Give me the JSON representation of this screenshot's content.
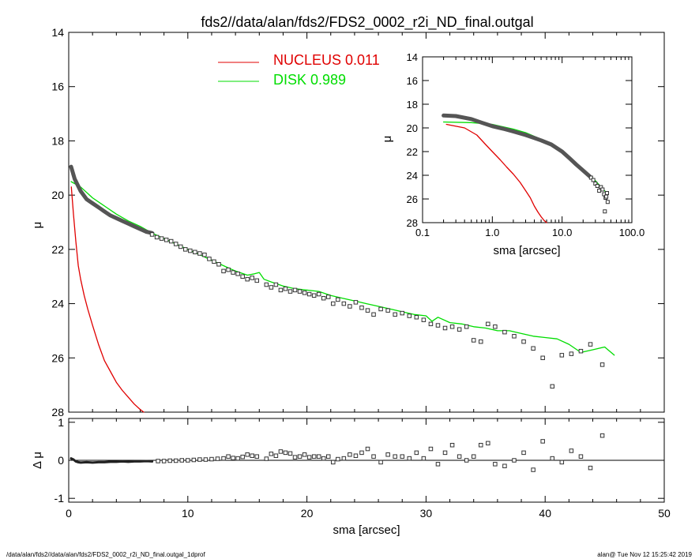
{
  "header": {
    "title": "fds2//data/alan/fds2/FDS2_0002_r2i_ND_final.outgal"
  },
  "footer": {
    "left": "/data/alan/fds2//data/alan/fds2/FDS2_0002_r2i_ND_final.outgal_1dprof",
    "right": "alan@  Tue Nov 12 15:25:42 2019"
  },
  "chart_data": [
    {
      "id": "main",
      "type": "scatter",
      "xlabel": "sma [arcsec]",
      "ylabel": "μ",
      "xlim": [
        0,
        50
      ],
      "ylim": [
        28,
        14
      ],
      "y_inverted": true,
      "xticks": [
        0,
        10,
        20,
        30,
        40,
        50
      ],
      "yticks": [
        14,
        16,
        18,
        20,
        22,
        24,
        26,
        28
      ],
      "legend": {
        "placement": "top-center",
        "entries": [
          {
            "label": "NUCLEUS  0.011",
            "color": "#e00000"
          },
          {
            "label": "DISK  0.989",
            "color": "#00dd00"
          }
        ]
      },
      "series": [
        {
          "name": "NUCLEUS",
          "color": "#e00000",
          "style": "line",
          "x": [
            0.22,
            0.4,
            0.6,
            0.8,
            1.0,
            1.3,
            1.6,
            2.0,
            2.5,
            3.0,
            3.5,
            4.0,
            4.5,
            5.0,
            5.5,
            6.0,
            6.3
          ],
          "y": [
            19.7,
            20.7,
            21.7,
            22.6,
            23.1,
            23.7,
            24.2,
            24.8,
            25.5,
            26.1,
            26.5,
            26.9,
            27.2,
            27.45,
            27.7,
            27.9,
            28.0
          ]
        },
        {
          "name": "DISK",
          "color": "#00dd00",
          "style": "line",
          "x": [
            0.2,
            1,
            2,
            3,
            4,
            5,
            6,
            7,
            8,
            9,
            10,
            11,
            12,
            13,
            14,
            15,
            15.6,
            16,
            16.4,
            17,
            18,
            19,
            20,
            21,
            22,
            23,
            24,
            25,
            26,
            27,
            28,
            29,
            30,
            30.5,
            31,
            32,
            33,
            34,
            35,
            36,
            37,
            38,
            39,
            40,
            41,
            42,
            43,
            44,
            45,
            45.8
          ],
          "y": [
            19.5,
            19.7,
            20.1,
            20.4,
            20.7,
            20.95,
            21.15,
            21.4,
            21.6,
            21.8,
            22.0,
            22.2,
            22.4,
            22.6,
            22.8,
            22.95,
            22.9,
            22.85,
            23.1,
            23.2,
            23.35,
            23.45,
            23.5,
            23.55,
            23.7,
            23.8,
            23.9,
            24.0,
            24.1,
            24.2,
            24.3,
            24.4,
            24.45,
            24.65,
            24.5,
            24.7,
            24.75,
            24.85,
            24.9,
            25.0,
            25.0,
            25.1,
            25.2,
            25.25,
            25.3,
            25.5,
            25.8,
            25.7,
            25.6,
            25.9
          ]
        },
        {
          "name": "inner-profile",
          "color": "#555555",
          "style": "thick-line",
          "x": [
            0.2,
            0.5,
            1.0,
            1.5,
            2,
            2.5,
            3,
            3.5,
            4,
            4.5,
            5,
            5.5,
            6,
            6.5,
            7
          ],
          "y": [
            18.95,
            19.4,
            19.85,
            20.15,
            20.3,
            20.45,
            20.6,
            20.75,
            20.85,
            20.95,
            21.05,
            21.15,
            21.25,
            21.35,
            21.4
          ]
        },
        {
          "name": "data",
          "color": "#333333",
          "style": "squares",
          "x": [
            7,
            7.4,
            7.8,
            8.2,
            8.6,
            9.0,
            9.4,
            9.8,
            10.2,
            10.6,
            11.0,
            11.4,
            11.8,
            12.2,
            12.6,
            13.0,
            13.4,
            13.8,
            14.2,
            14.6,
            15.0,
            15.4,
            15.8,
            16.6,
            17.0,
            17.4,
            17.8,
            18.2,
            18.6,
            19.0,
            19.4,
            19.8,
            20.2,
            20.6,
            21.0,
            21.4,
            21.8,
            22.2,
            22.6,
            23.1,
            23.6,
            24.1,
            24.6,
            25.1,
            25.6,
            26.2,
            26.8,
            27.4,
            28.0,
            28.6,
            29.2,
            29.8,
            30.4,
            31.0,
            31.6,
            32.2,
            32.8,
            33.4,
            34.0,
            34.6,
            35.2,
            35.8,
            36.6,
            37.4,
            38.2,
            39.0,
            39.8,
            40.6,
            41.4,
            42.2,
            43.0,
            43.8,
            44.8
          ],
          "y": [
            21.45,
            21.55,
            21.6,
            21.65,
            21.7,
            21.8,
            21.9,
            22.0,
            22.05,
            22.1,
            22.15,
            22.2,
            22.35,
            22.45,
            22.55,
            22.8,
            22.75,
            22.85,
            22.9,
            23.0,
            23.1,
            23.05,
            23.15,
            23.3,
            23.4,
            23.3,
            23.5,
            23.45,
            23.55,
            23.5,
            23.55,
            23.6,
            23.65,
            23.7,
            23.65,
            23.8,
            23.75,
            24.0,
            23.85,
            24.0,
            24.1,
            23.95,
            24.15,
            24.25,
            24.4,
            24.2,
            24.25,
            24.4,
            24.35,
            24.45,
            24.5,
            24.6,
            24.75,
            24.8,
            24.9,
            24.85,
            24.95,
            24.85,
            25.35,
            25.4,
            24.75,
            24.85,
            25.05,
            25.2,
            25.4,
            25.65,
            26.0,
            27.05,
            25.9,
            25.85,
            25.75,
            25.5,
            26.25
          ]
        }
      ]
    },
    {
      "id": "inset",
      "type": "scatter",
      "xscale": "log",
      "xlabel": "sma [arcsec]",
      "ylabel": "μ",
      "xlim": [
        0.1,
        100
      ],
      "ylim": [
        28,
        14
      ],
      "y_inverted": true,
      "xticks": [
        0.1,
        1.0,
        10.0,
        100.0
      ],
      "xticklabels": [
        "0.1",
        "1.0",
        "10.0",
        "100.0"
      ],
      "yticks": [
        14,
        16,
        18,
        20,
        22,
        24,
        26,
        28
      ],
      "series": [
        {
          "name": "NUCLEUS",
          "color": "#e00000",
          "style": "line",
          "x": [
            0.22,
            0.4,
            0.6,
            0.8,
            1.0,
            1.3,
            1.6,
            2.0,
            2.5,
            3.0,
            3.5,
            4.0,
            4.5,
            5.0,
            5.5,
            6.0
          ],
          "y": [
            19.7,
            20.0,
            20.6,
            21.4,
            22.0,
            22.7,
            23.3,
            23.9,
            24.6,
            25.3,
            25.9,
            26.6,
            27.1,
            27.5,
            27.8,
            28.0
          ]
        },
        {
          "name": "DISK",
          "color": "#00dd00",
          "style": "line",
          "x": [
            0.2,
            0.5,
            1.0,
            2,
            3,
            5,
            7,
            10,
            15,
            20,
            25,
            30,
            35,
            40,
            45
          ],
          "y": [
            19.5,
            19.55,
            19.7,
            20.1,
            20.4,
            20.95,
            21.4,
            22.0,
            22.95,
            23.5,
            24.0,
            24.45,
            24.9,
            25.25,
            25.6
          ]
        },
        {
          "name": "profile",
          "color": "#555555",
          "style": "thick-line",
          "x": [
            0.2,
            0.3,
            0.5,
            0.7,
            1.0,
            1.5,
            2,
            3,
            4,
            5,
            7,
            10,
            13,
            16,
            20,
            25
          ],
          "y": [
            18.95,
            19.0,
            19.25,
            19.55,
            19.85,
            20.1,
            20.3,
            20.6,
            20.85,
            21.05,
            21.4,
            22.0,
            22.6,
            23.1,
            23.6,
            24.1
          ]
        },
        {
          "name": "data",
          "color": "#333333",
          "style": "squares",
          "x": [
            26,
            28,
            30,
            32,
            34,
            36,
            38,
            40,
            41,
            42,
            43,
            44,
            45
          ],
          "y": [
            24.2,
            24.4,
            24.7,
            24.9,
            25.3,
            25.0,
            25.2,
            25.6,
            27.05,
            25.9,
            25.8,
            25.5,
            26.25
          ]
        }
      ]
    },
    {
      "id": "residual",
      "type": "scatter",
      "xlabel": "sma [arcsec]",
      "ylabel": "Δ μ",
      "xlim": [
        0,
        50
      ],
      "ylim": [
        -1.1,
        1.1
      ],
      "xticks": [
        0,
        10,
        20,
        30,
        40,
        50
      ],
      "yticks": [
        -1,
        0,
        1
      ],
      "zero_line": true,
      "series": [
        {
          "name": "inner-residual",
          "color": "#222222",
          "style": "thick-line",
          "x": [
            0.2,
            0.4,
            0.6,
            0.8,
            1.0,
            1.5,
            2,
            2.5,
            3,
            3.5,
            4,
            4.5,
            5,
            5.5,
            6,
            6.5,
            7
          ],
          "y": [
            0.05,
            0.02,
            -0.03,
            -0.05,
            -0.06,
            -0.05,
            -0.06,
            -0.05,
            -0.05,
            -0.04,
            -0.04,
            -0.03,
            -0.04,
            -0.03,
            -0.03,
            -0.02,
            -0.03
          ]
        },
        {
          "name": "residual-points",
          "color": "#333333",
          "style": "squares",
          "x": [
            7.5,
            8.0,
            8.5,
            9.0,
            9.5,
            10.0,
            10.5,
            11.0,
            11.5,
            12.0,
            12.5,
            13.0,
            13.4,
            13.8,
            14.2,
            14.6,
            15.0,
            15.4,
            15.8,
            16.6,
            17.0,
            17.4,
            17.8,
            18.2,
            18.6,
            19.0,
            19.4,
            19.8,
            20.2,
            20.6,
            21.0,
            21.4,
            21.8,
            22.2,
            22.6,
            23.1,
            23.6,
            24.1,
            24.6,
            25.1,
            25.6,
            26.2,
            26.8,
            27.4,
            28.0,
            28.6,
            29.2,
            29.8,
            30.4,
            31.0,
            31.6,
            32.2,
            32.8,
            33.4,
            34.0,
            34.6,
            35.2,
            35.8,
            36.6,
            37.4,
            38.2,
            39.0,
            39.8,
            40.6,
            41.4,
            42.2,
            43.0,
            43.8,
            44.8
          ],
          "y": [
            -0.02,
            -0.02,
            -0.01,
            -0.01,
            0.0,
            0.0,
            0.01,
            0.02,
            0.02,
            0.03,
            0.04,
            0.05,
            0.1,
            0.06,
            0.05,
            0.09,
            0.15,
            0.12,
            0.1,
            0.04,
            0.17,
            0.12,
            0.23,
            0.2,
            0.18,
            0.08,
            0.1,
            0.15,
            0.08,
            0.1,
            0.1,
            0.05,
            0.1,
            -0.05,
            0.03,
            0.05,
            0.15,
            0.12,
            0.2,
            0.3,
            0.1,
            -0.05,
            0.15,
            0.1,
            0.1,
            0.05,
            0.2,
            0.05,
            0.3,
            -0.1,
            0.2,
            0.4,
            0.1,
            0.0,
            0.1,
            0.4,
            0.45,
            -0.1,
            -0.15,
            0.0,
            0.2,
            -0.25,
            0.5,
            0.05,
            -0.05,
            0.25,
            0.1,
            -0.2,
            0.65
          ]
        }
      ]
    }
  ]
}
